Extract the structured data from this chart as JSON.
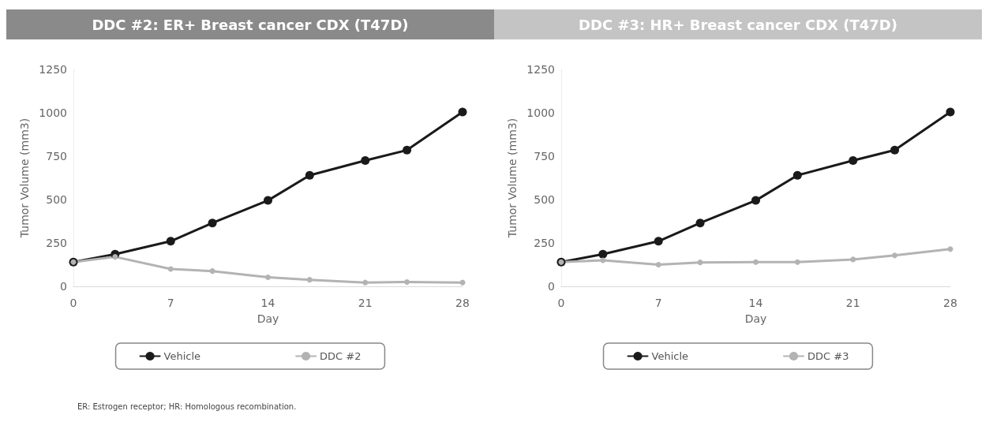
{
  "chart_data": [
    {
      "type": "line",
      "title": "DDC #2: ER+ Breast cancer CDX (T47D)",
      "xlabel": "Day",
      "ylabel": "Tumor Volume (mm3)",
      "x": [
        0,
        3,
        7,
        10,
        14,
        17,
        21,
        24,
        28
      ],
      "xlim": [
        0,
        28
      ],
      "xticks": [
        0,
        7,
        14,
        21,
        28
      ],
      "ylim": [
        0,
        1250
      ],
      "yticks": [
        0,
        250,
        500,
        750,
        1000,
        1250
      ],
      "grid": false,
      "legend": "bottom",
      "marker": "circle",
      "line_style": "solid",
      "series": [
        {
          "name": "Vehicle",
          "color": "#1a1a1a",
          "values": [
            140,
            185,
            260,
            365,
            495,
            640,
            725,
            785,
            1005
          ]
        },
        {
          "name": "DDC #2",
          "color": "#b3b3b3",
          "values": [
            140,
            170,
            100,
            88,
            52,
            38,
            22,
            25,
            22
          ]
        }
      ],
      "annotations": [
        "ER: Estrogen receptor; HR: Homologous recombination."
      ]
    },
    {
      "type": "line",
      "title": "DDC #3: HR+ Breast cancer CDX (T47D)",
      "xlabel": "Day",
      "ylabel": "Tumor Volume (mm3)",
      "x": [
        0,
        3,
        7,
        10,
        14,
        17,
        21,
        24,
        28
      ],
      "xlim": [
        0,
        28
      ],
      "xticks": [
        0,
        7,
        14,
        21,
        28
      ],
      "ylim": [
        0,
        1250
      ],
      "yticks": [
        0,
        250,
        500,
        750,
        1000,
        1250
      ],
      "grid": false,
      "legend": "bottom",
      "marker": "circle",
      "line_style": "solid",
      "series": [
        {
          "name": "Vehicle",
          "color": "#1a1a1a",
          "values": [
            140,
            185,
            260,
            365,
            495,
            640,
            725,
            785,
            1005
          ]
        },
        {
          "name": "DDC #3",
          "color": "#b3b3b3",
          "values": [
            140,
            150,
            125,
            138,
            140,
            140,
            155,
            178,
            215
          ]
        }
      ]
    }
  ]
}
